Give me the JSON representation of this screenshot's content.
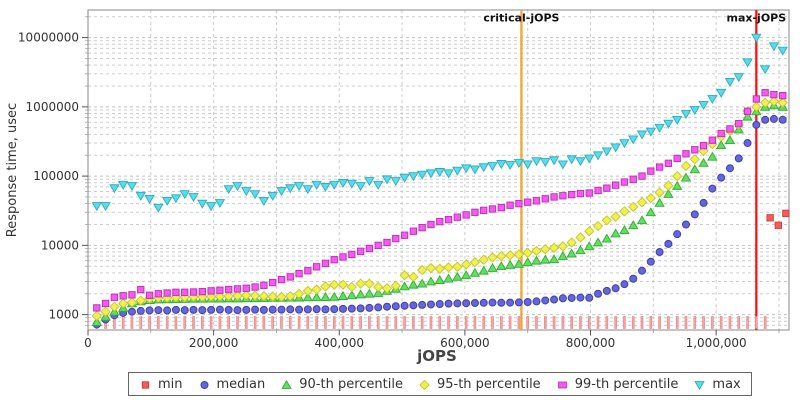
{
  "chart_data": {
    "type": "scatter",
    "title": "",
    "xlabel": "jOPS",
    "ylabel": "Response time, usec",
    "x_axis": {
      "min": 0,
      "max": 1116000,
      "gridline_step": 100000,
      "ticks": [
        {
          "v": 0,
          "label": "0"
        },
        {
          "v": 200000,
          "label": "200,000"
        },
        {
          "v": 400000,
          "label": "400,000"
        },
        {
          "v": 600000,
          "label": "600,000"
        },
        {
          "v": 800000,
          "label": "800,000"
        },
        {
          "v": 1000000,
          "label": "1,000,000"
        }
      ]
    },
    "y_axis": {
      "scale": "log",
      "min": 600,
      "max": 24500000,
      "ticks": [
        {
          "v": 1000,
          "label": "1000"
        },
        {
          "v": 10000,
          "label": "10000"
        },
        {
          "v": 100000,
          "label": "100000"
        },
        {
          "v": 1000000,
          "label": "1000000"
        },
        {
          "v": 10000000,
          "label": "10000000"
        }
      ]
    },
    "ref_lines": [
      {
        "label": "critical-jOPS",
        "value": 690000,
        "color": "#F2A62C"
      },
      {
        "label": "max-jOPS",
        "value": 1064000,
        "color": "#FF1111"
      }
    ],
    "series_x": {
      "start": 14000,
      "step": 14000
    },
    "series": [
      {
        "name": "min",
        "marker": "stroke-square",
        "color": "#F25C5C",
        "edge": "#D23A3A",
        "values": [
          850,
          850,
          850,
          850,
          850,
          850,
          850,
          850,
          850,
          850,
          850,
          850,
          850,
          850,
          850,
          850,
          850,
          850,
          850,
          850,
          850,
          850,
          850,
          850,
          850,
          850,
          850,
          850,
          850,
          850,
          850,
          850,
          850,
          850,
          850,
          850,
          850,
          850,
          850,
          850,
          850,
          850,
          850,
          850,
          850,
          850,
          850,
          850,
          850,
          850,
          850,
          850,
          850,
          850,
          850,
          850,
          850,
          850,
          850,
          850,
          850,
          850,
          850,
          850,
          850,
          850,
          850,
          850,
          850,
          850,
          850,
          850,
          850,
          850,
          850,
          850,
          850
        ],
        "extra_points": [
          [
            1086000,
            25000
          ],
          [
            1099000,
            19500
          ],
          [
            1111000,
            29000
          ]
        ]
      },
      {
        "name": "median",
        "marker": "circle",
        "color": "#6565DC",
        "edge": "#4040AE",
        "values": [
          720,
          850,
          980,
          1060,
          1100,
          1130,
          1150,
          1160,
          1150,
          1170,
          1160,
          1170,
          1160,
          1170,
          1180,
          1170,
          1160,
          1170,
          1180,
          1170,
          1180,
          1180,
          1190,
          1180,
          1190,
          1200,
          1190,
          1200,
          1210,
          1220,
          1230,
          1250,
          1270,
          1300,
          1320,
          1340,
          1360,
          1380,
          1400,
          1420,
          1440,
          1450,
          1460,
          1470,
          1480,
          1490,
          1480,
          1490,
          1500,
          1520,
          1550,
          1600,
          1650,
          1720,
          1740,
          1760,
          1750,
          2000,
          2200,
          2400,
          2750,
          3300,
          4300,
          5800,
          8000,
          10500,
          14500,
          20000,
          28000,
          41000,
          66000,
          95000,
          130000,
          180000,
          300000,
          550000,
          650000,
          670000,
          650000
        ]
      },
      {
        "name": "90-th percentile",
        "marker": "triangle-up",
        "color": "#62DE62",
        "edge": "#2FAE2F",
        "values": [
          780,
          930,
          1100,
          1250,
          1450,
          1550,
          1620,
          1650,
          1660,
          1670,
          1680,
          1690,
          1690,
          1700,
          1700,
          1710,
          1710,
          1720,
          1720,
          1730,
          1740,
          1740,
          1750,
          1760,
          1770,
          1780,
          1790,
          1800,
          1850,
          1900,
          1950,
          2000,
          2050,
          2200,
          2350,
          2550,
          2700,
          2800,
          3000,
          3150,
          3300,
          3500,
          3700,
          4000,
          4300,
          4700,
          5000,
          5200,
          5400,
          5700,
          6000,
          6200,
          6300,
          7000,
          7600,
          8500,
          9700,
          11000,
          12500,
          14800,
          16600,
          19500,
          23000,
          30000,
          41000,
          55000,
          72000,
          95000,
          125000,
          155000,
          190000,
          280000,
          330000,
          470000,
          720000,
          860000,
          1000000,
          1050000,
          1000000
        ]
      },
      {
        "name": "95-th percentile",
        "marker": "diamond",
        "color": "#F0F055",
        "edge": "#C6C61E",
        "values": [
          960,
          1100,
          1300,
          1450,
          1500,
          1600,
          1700,
          1750,
          1750,
          1780,
          1780,
          1800,
          1800,
          1820,
          1830,
          1850,
          1870,
          1900,
          1870,
          1850,
          1820,
          1800,
          1850,
          2000,
          2200,
          2300,
          2550,
          2700,
          2700,
          2500,
          2800,
          2800,
          2500,
          2400,
          2600,
          3700,
          3500,
          4400,
          4700,
          4600,
          4800,
          4900,
          5300,
          5700,
          6200,
          6700,
          7000,
          7200,
          7400,
          7800,
          8300,
          8800,
          9200,
          9700,
          11000,
          13000,
          16000,
          19000,
          23000,
          26000,
          31000,
          36000,
          42000,
          48000,
          58000,
          73000,
          100000,
          140000,
          175000,
          230000,
          290000,
          373000,
          450000,
          554000,
          860000,
          1000000,
          1150000,
          1200000,
          1150000
        ]
      },
      {
        "name": "99-th percentile",
        "marker": "square",
        "color": "#F05CEC",
        "edge": "#C428C0",
        "values": [
          1250,
          1450,
          1780,
          1870,
          1930,
          2300,
          1900,
          2000,
          2050,
          2100,
          2100,
          2120,
          2150,
          2200,
          2250,
          2300,
          2350,
          2400,
          2500,
          2650,
          2900,
          3200,
          3500,
          3900,
          4300,
          4900,
          5500,
          6200,
          6800,
          7400,
          8200,
          9000,
          10000,
          11000,
          12500,
          14000,
          16000,
          18000,
          20000,
          22000,
          23500,
          25500,
          27500,
          30000,
          32000,
          33500,
          35000,
          38000,
          40000,
          42000,
          44000,
          47000,
          50000,
          52000,
          54000,
          56000,
          57000,
          62000,
          67000,
          74000,
          82000,
          90000,
          100000,
          118000,
          135000,
          153000,
          180000,
          210000,
          240000,
          275000,
          330000,
          412000,
          480000,
          572000,
          860000,
          1300000,
          1600000,
          1500000,
          1450000
        ]
      },
      {
        "name": "max",
        "marker": "triangle-down",
        "color": "#5CDCEA",
        "edge": "#28AEC0",
        "values": [
          37000,
          37000,
          67000,
          75000,
          72000,
          52000,
          47000,
          35000,
          44000,
          48000,
          55000,
          50000,
          40000,
          37000,
          41000,
          65000,
          72000,
          61000,
          55000,
          44000,
          52000,
          61000,
          67000,
          72000,
          65000,
          75000,
          70000,
          75000,
          80000,
          78000,
          72000,
          85000,
          75000,
          90000,
          85000,
          95000,
          100000,
          105000,
          110000,
          115000,
          110000,
          120000,
          130000,
          125000,
          135000,
          140000,
          150000,
          145000,
          155000,
          148000,
          165000,
          160000,
          170000,
          148000,
          175000,
          165000,
          180000,
          200000,
          228000,
          260000,
          300000,
          340000,
          400000,
          440000,
          500000,
          572000,
          650000,
          790000,
          900000,
          1070000,
          1300000,
          1600000,
          2300000,
          2700000,
          4400000,
          10000000,
          3500000,
          7500000,
          6500000
        ]
      }
    ]
  }
}
